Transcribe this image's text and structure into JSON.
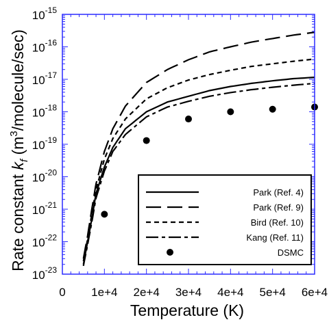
{
  "chart_data": {
    "type": "line",
    "xlabel": "Temperature (K)",
    "ylabel": {
      "prefix": "Rate constant ",
      "k": "k",
      "k_sub": "f",
      "mid": " (m",
      "sup": "3",
      "suffix": "/molecule/sec)"
    },
    "x_ticks": [
      {
        "value": 0,
        "label": "0"
      },
      {
        "value": 10000,
        "label": "1e+4"
      },
      {
        "value": 20000,
        "label": "2e+4"
      },
      {
        "value": 30000,
        "label": "3e+4"
      },
      {
        "value": 40000,
        "label": "4e+4"
      },
      {
        "value": 50000,
        "label": "5e+4"
      },
      {
        "value": 60000,
        "label": "6e+4"
      }
    ],
    "y_ticks": [
      {
        "value": 1e-23,
        "exp": "-23"
      },
      {
        "value": 1e-22,
        "exp": "-22"
      },
      {
        "value": 1e-21,
        "exp": "-21"
      },
      {
        "value": 1e-20,
        "exp": "-20"
      },
      {
        "value": 1e-19,
        "exp": "-19"
      },
      {
        "value": 1e-18,
        "exp": "-18"
      },
      {
        "value": 1e-17,
        "exp": "-17"
      },
      {
        "value": 1e-16,
        "exp": "-16"
      },
      {
        "value": 1e-15,
        "exp": "-15"
      }
    ],
    "y_tick_base": "10",
    "xlim": [
      0,
      60000
    ],
    "ylim": [
      1e-23,
      1e-15
    ],
    "y_scale": "log",
    "legend_position": "bottom-right",
    "series": [
      {
        "name": "Park (Ref. 4)",
        "style": "solid",
        "x": [
          5000,
          6000,
          7000,
          8000,
          10000,
          12000,
          15000,
          20000,
          25000,
          30000,
          35000,
          40000,
          45000,
          50000,
          55000,
          60000
        ],
        "y": [
          2e-23,
          1e-22,
          5e-22,
          3e-21,
          2e-20,
          8e-20,
          3e-19,
          1e-18,
          2e-18,
          3e-18,
          4.5e-18,
          6e-18,
          7.5e-18,
          9e-18,
          1.05e-17,
          1.15e-17
        ]
      },
      {
        "name": "Park (Ref. 9)",
        "style": "long-dash",
        "x": [
          5000,
          6000,
          7000,
          8000,
          10000,
          12000,
          15000,
          20000,
          25000,
          30000,
          35000,
          40000,
          45000,
          50000,
          55000,
          60000
        ],
        "y": [
          3e-23,
          1.5e-22,
          1e-21,
          6e-21,
          6e-20,
          3e-19,
          1.5e-18,
          8e-18,
          2e-17,
          4e-17,
          7e-17,
          1e-16,
          1.4e-16,
          1.8e-16,
          2.3e-16,
          2.8e-16
        ]
      },
      {
        "name": "Bird (Ref. 10)",
        "style": "short-dash",
        "x": [
          5000,
          6000,
          7000,
          8000,
          10000,
          12000,
          15000,
          20000,
          25000,
          30000,
          35000,
          40000,
          45000,
          50000,
          55000,
          60000
        ],
        "y": [
          2.5e-23,
          1.2e-22,
          7e-22,
          4e-21,
          3.5e-20,
          1.5e-19,
          6e-19,
          2.5e-18,
          5.5e-18,
          9.5e-18,
          1.4e-17,
          1.9e-17,
          2.5e-17,
          3e-17,
          3.6e-17,
          4.2e-17
        ]
      },
      {
        "name": "Kang (Ref. 11)",
        "style": "dash-dot",
        "x": [
          5000,
          6000,
          7000,
          8000,
          10000,
          12000,
          15000,
          20000,
          25000,
          30000,
          35000,
          40000,
          45000,
          50000,
          55000,
          60000
        ],
        "y": [
          1.8e-23,
          8e-23,
          4e-22,
          2.2e-21,
          1.5e-20,
          6e-20,
          2e-19,
          7e-19,
          1.4e-18,
          2.1e-18,
          3e-18,
          3.9e-18,
          4.8e-18,
          5.7e-18,
          6.6e-18,
          7.5e-18
        ]
      },
      {
        "name": "DSMC",
        "style": "markers",
        "x": [
          10000,
          20000,
          30000,
          40000,
          50000,
          60000
        ],
        "y": [
          7e-22,
          1.3e-19,
          6e-19,
          1e-18,
          1.2e-18,
          1.4e-18
        ]
      }
    ],
    "colors": {
      "frame": "#2a2aff",
      "lines": "#000000"
    }
  }
}
